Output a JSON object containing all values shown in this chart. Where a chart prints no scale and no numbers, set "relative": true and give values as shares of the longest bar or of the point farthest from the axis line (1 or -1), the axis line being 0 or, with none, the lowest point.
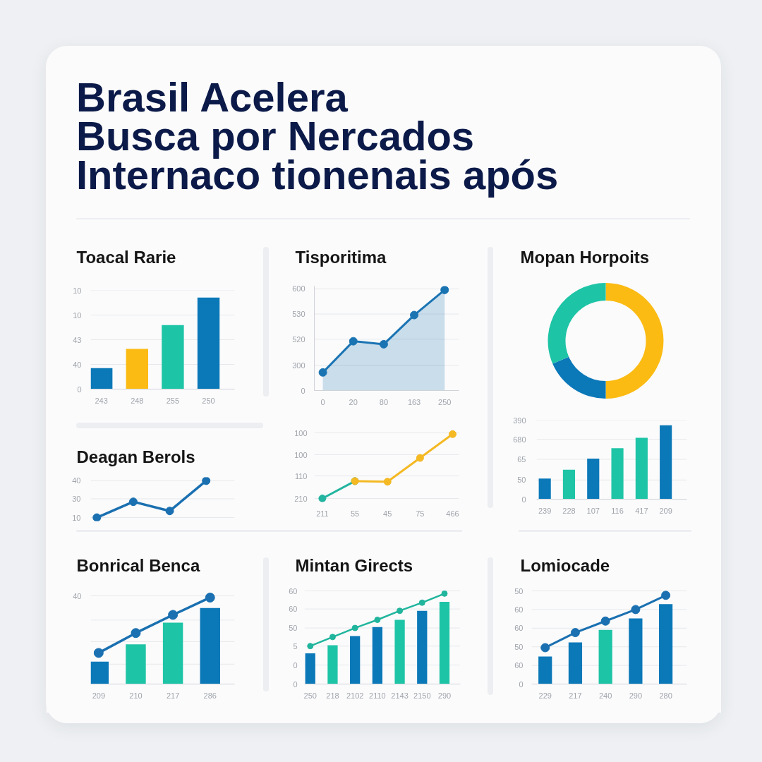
{
  "chart_data": [
    {
      "type": "other",
      "title": "Brasil Acelera\nBusca por Nercados\nInternaco tionenais após"
    },
    {
      "type": "bar",
      "title": "Toacal Rarie",
      "relative": true,
      "categories": [
        "243",
        "248",
        "255",
        "250"
      ],
      "values": [
        0.23,
        0.44,
        0.7,
        1
      ],
      "colors": [
        "#0b78b8",
        "#fbbb13",
        "#1ec4a6",
        "#0b78b8"
      ],
      "ref_lines": [
        {
          "axis": "y",
          "value": 0.27
        },
        {
          "axis": "y",
          "value": 0.54
        },
        {
          "axis": "y",
          "value": 0.81
        },
        {
          "axis": "y",
          "value": 1.08
        }
      ],
      "annotations": [
        "0",
        "40",
        "43",
        "10",
        "10"
      ]
    },
    {
      "type": "area",
      "title": "Tisporitima",
      "relative": true,
      "categories": [
        "0",
        "20",
        "80",
        "163",
        "250"
      ],
      "values": [
        0.18,
        0.49,
        0.46,
        0.75,
        1
      ],
      "color": "#1a74b3",
      "marker": "circle",
      "ref_lines": [
        {
          "axis": "y",
          "value": 0.25
        },
        {
          "axis": "y",
          "value": 0.51
        },
        {
          "axis": "y",
          "value": 0.76
        },
        {
          "axis": "y",
          "value": 1.01
        }
      ],
      "annotations": [
        "0",
        "300",
        "520",
        "530",
        "600"
      ]
    },
    {
      "type": "donut",
      "title": "Mopan Horpoits",
      "categories": [
        null,
        null,
        null
      ],
      "values": [
        50,
        18.5,
        31.5
      ],
      "colors": [
        "#fbbb13",
        "#0b78b8",
        "#1ec4a6"
      ]
    },
    {
      "type": "line",
      "title": "Deagan Berols",
      "relative": true,
      "categories": [
        null,
        null,
        null,
        null
      ],
      "values": [
        0,
        0.43,
        0.18,
        1
      ],
      "color": "#1a70b0",
      "marker": "circle",
      "ref_lines": [
        {
          "axis": "y",
          "value": 0
        },
        {
          "axis": "y",
          "value": 0.51
        },
        {
          "axis": "y",
          "value": 1
        }
      ],
      "annotations": [
        "10",
        "30",
        "40"
      ]
    },
    {
      "type": "line",
      "relative": true,
      "categories": [
        "211",
        "55",
        "45",
        "75",
        "466"
      ],
      "series": [
        {
          "color": "#23b5a0",
          "values": [
            0,
            0.27,
            null,
            null,
            null
          ]
        },
        {
          "color": "#f4b923",
          "values": [
            null,
            0.27,
            0.26,
            0.63,
            1
          ]
        }
      ],
      "marker": "circle",
      "ref_lines": [
        {
          "axis": "y",
          "value": 0
        },
        {
          "axis": "y",
          "value": 0.35
        },
        {
          "axis": "y",
          "value": 0.68
        },
        {
          "axis": "y",
          "value": 1.02
        }
      ],
      "annotations": [
        "210",
        "110",
        "100",
        "100"
      ]
    },
    {
      "type": "bar",
      "relative": true,
      "categories": [
        "239",
        "228",
        "107",
        "116",
        "417",
        "209"
      ],
      "values": [
        0.28,
        0.4,
        0.55,
        0.69,
        0.83,
        1
      ],
      "colors": [
        "#0b78b8",
        "#1ec4a6",
        "#0b78b8",
        "#1ec4a6",
        "#1ec4a6",
        "#0b78b8"
      ],
      "ref_lines": [
        {
          "axis": "y",
          "value": 0.26
        },
        {
          "axis": "y",
          "value": 0.54
        },
        {
          "axis": "y",
          "value": 0.81
        },
        {
          "axis": "y",
          "value": 1.07
        }
      ],
      "annotations": [
        "0",
        "50",
        "65",
        "680",
        "390"
      ]
    },
    {
      "type": "bar",
      "title": "Bonrical Benca",
      "relative": true,
      "categories": [
        "209",
        "210",
        "217",
        "286"
      ],
      "series": [
        {
          "type": "bar",
          "colors": [
            "#0b78b8",
            "#1ec4a6",
            "#1ec4a6",
            "#0b78b8"
          ],
          "values": [
            0.26,
            0.46,
            0.71,
            0.88
          ]
        },
        {
          "type": "line",
          "color": "#1a70b0",
          "values": [
            0.36,
            0.59,
            0.8,
            1
          ]
        }
      ],
      "marker": "circle",
      "ref_lines": [
        {
          "axis": "y",
          "value": 0.23
        },
        {
          "axis": "y",
          "value": 0.49
        },
        {
          "axis": "y",
          "value": 0.74
        },
        {
          "axis": "y",
          "value": 1.02
        }
      ],
      "annotations": [
        "40"
      ]
    },
    {
      "type": "bar",
      "title": "Mintan Girects",
      "relative": true,
      "categories": [
        "250",
        "218",
        "2102",
        "2110",
        "2143",
        "2150",
        "290"
      ],
      "series": [
        {
          "type": "bar",
          "colors": [
            "#0b78b8",
            "#1ec4a6",
            "#0b78b8",
            "#0b78b8",
            "#1ec4a6",
            "#0b78b8",
            "#1ec4a6"
          ],
          "values": [
            0.34,
            0.43,
            0.53,
            0.63,
            0.71,
            0.81,
            0.91
          ]
        },
        {
          "type": "line",
          "color": "#20b59c",
          "values": [
            0.42,
            0.52,
            0.62,
            0.71,
            0.81,
            0.9,
            1
          ]
        }
      ],
      "marker": "circle",
      "ref_lines": [
        {
          "axis": "y",
          "value": 0.21
        },
        {
          "axis": "y",
          "value": 0.42
        },
        {
          "axis": "y",
          "value": 0.62
        },
        {
          "axis": "y",
          "value": 0.83
        },
        {
          "axis": "y",
          "value": 1.03
        }
      ],
      "annotations": [
        "0",
        "0",
        "5",
        "50",
        "60",
        "60"
      ]
    },
    {
      "type": "bar",
      "title": "Lomiocade",
      "relative": true,
      "categories": [
        "229",
        "217",
        "240",
        "290",
        "280"
      ],
      "series": [
        {
          "type": "bar",
          "colors": [
            "#0b78b8",
            "#0b78b8",
            "#1ec4a6",
            "#0b78b8",
            "#0b78b8"
          ],
          "values": [
            0.31,
            0.47,
            0.61,
            0.74,
            0.9
          ]
        },
        {
          "type": "line",
          "color": "#1a70b0",
          "values": [
            0.41,
            0.58,
            0.71,
            0.84,
            1
          ]
        }
      ],
      "marker": "circle",
      "ref_lines": [
        {
          "axis": "y",
          "value": 0.21
        },
        {
          "axis": "y",
          "value": 0.42
        },
        {
          "axis": "y",
          "value": 0.63
        },
        {
          "axis": "y",
          "value": 0.84
        },
        {
          "axis": "y",
          "value": 1.05
        }
      ],
      "annotations": [
        "0",
        "60",
        "50",
        "60",
        "60",
        "50"
      ]
    }
  ]
}
